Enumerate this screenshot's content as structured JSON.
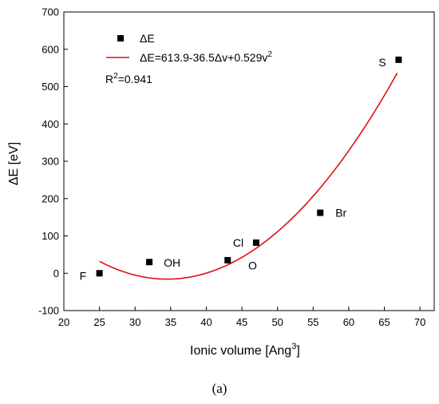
{
  "chart_data": {
    "type": "scatter",
    "xlabel": "Ionic volume [Ang",
    "xlabel_sup": "3",
    "xlabel_end": "]",
    "ylabel": "ΔE [eV]",
    "xlim": [
      20,
      72
    ],
    "ylim": [
      -100,
      700
    ],
    "x_ticks": [
      20,
      25,
      30,
      35,
      40,
      45,
      50,
      55,
      60,
      65,
      70
    ],
    "y_ticks": [
      -100,
      0,
      100,
      200,
      300,
      400,
      500,
      600,
      700
    ],
    "grid": false,
    "legend_position": "top-left",
    "series": [
      {
        "name": "ΔE",
        "marker": "square",
        "color": "#000000",
        "points": [
          {
            "x": 25,
            "y": 0,
            "label": "F"
          },
          {
            "x": 32,
            "y": 30,
            "label": "OH"
          },
          {
            "x": 43,
            "y": 35,
            "label": ""
          },
          {
            "x": 47,
            "y": 82,
            "label": "Cl"
          },
          {
            "x": 56,
            "y": 162,
            "label": "Br"
          },
          {
            "x": 67,
            "y": 572,
            "label": "S"
          }
        ]
      }
    ],
    "fit": {
      "legend_text": "ΔE=613.9-36.5Δv+0.529v",
      "legend_sup": "2",
      "color": "#e01010",
      "coefficients": {
        "c0": 613.9,
        "c1": -36.5,
        "c2": 0.529
      },
      "x_range": [
        25,
        66.8
      ]
    },
    "r_squared": {
      "prefix": "R",
      "sup": "2",
      "value": "=0.941"
    },
    "annotation_open_circle": {
      "label": "O",
      "x": 46.5,
      "y": 10
    },
    "caption": "(a)"
  }
}
